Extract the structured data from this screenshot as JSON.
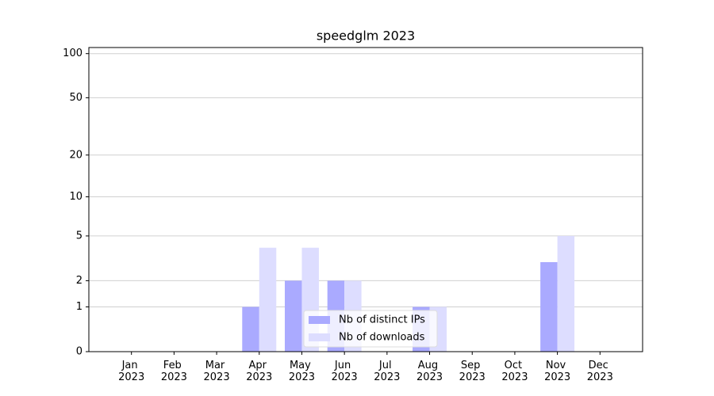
{
  "chart_data": {
    "type": "bar",
    "title": "speedglm 2023",
    "categories": [
      "Jan 2023",
      "Feb 2023",
      "Mar 2023",
      "Apr 2023",
      "May 2023",
      "Jun 2023",
      "Jul 2023",
      "Aug 2023",
      "Sep 2023",
      "Oct 2023",
      "Nov 2023",
      "Dec 2023"
    ],
    "series": [
      {
        "name": "Nb of distinct IPs",
        "color": "#aaaaff",
        "values": [
          0,
          0,
          0,
          1,
          2,
          2,
          0,
          1,
          0,
          0,
          3,
          0
        ]
      },
      {
        "name": "Nb of downloads",
        "color": "#ddddff",
        "values": [
          0,
          0,
          0,
          4,
          4,
          2,
          0,
          1,
          0,
          0,
          5,
          0
        ]
      }
    ],
    "y_scale": "log1p",
    "ylim": [
      0,
      110
    ],
    "yticks": [
      0,
      1,
      2,
      5,
      10,
      20,
      50,
      100
    ],
    "grid": true,
    "legend": "lower center"
  }
}
